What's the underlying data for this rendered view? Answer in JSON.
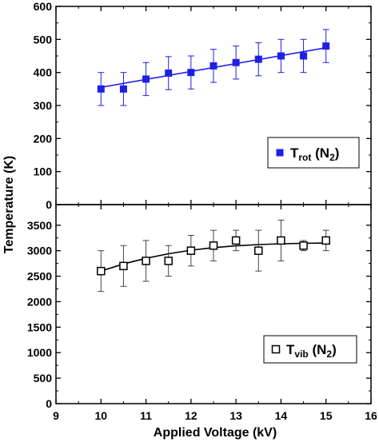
{
  "chart_data": {
    "type": "scatter",
    "xlabel": "Applied Voltage (kV)",
    "ylabel": "Temperature (K)",
    "xlim": [
      9,
      16
    ],
    "x_ticks": [
      "9",
      "10",
      "11",
      "12",
      "13",
      "14",
      "15",
      "16"
    ],
    "grid": false,
    "panels": [
      {
        "name": "top",
        "ylim": [
          0,
          600
        ],
        "y_ticks": [
          "0",
          "100",
          "200",
          "300",
          "400",
          "500",
          "600"
        ],
        "legend": {
          "placement": "center-right",
          "main": "T",
          "sub": "rot",
          "open": "(N",
          "subscript2": "2",
          "close": ")"
        },
        "series": [
          {
            "marker": "filled-square",
            "color": "#1f1fe6",
            "x": [
              10,
              10.5,
              11,
              11.5,
              12,
              12.5,
              13,
              13.5,
              14,
              14.5,
              15
            ],
            "y": [
              350,
              350,
              380,
              398,
              400,
              420,
              430,
              440,
              450,
              450,
              480
            ],
            "err": [
              50,
              50,
              50,
              50,
              50,
              50,
              50,
              50,
              50,
              50,
              50
            ],
            "fit": {
              "x": [
                10,
                15
              ],
              "y": [
                355,
                475
              ]
            }
          }
        ]
      },
      {
        "name": "bottom",
        "ylim": [
          0,
          3700
        ],
        "y_ticks": [
          "0",
          "500",
          "1000",
          "1500",
          "2000",
          "2500",
          "3000",
          "3500"
        ],
        "legend": {
          "placement": "lower-right",
          "main": "T",
          "sub": "vib",
          "open": "(N",
          "subscript2": "2",
          "close": ")"
        },
        "series": [
          {
            "marker": "open-square",
            "color": "#000000",
            "x": [
              10,
              10.5,
              11,
              11.5,
              12,
              12.5,
              13,
              13.5,
              14,
              14.5,
              15
            ],
            "y": [
              2600,
              2700,
              2800,
              2800,
              3000,
              3100,
              3200,
              3000,
              3200,
              3100,
              3200
            ],
            "err": [
              400,
              400,
              400,
              300,
              300,
              300,
              200,
              400,
              400,
              100,
              200
            ],
            "fit": {
              "x": [
                10,
                10.5,
                11,
                11.5,
                12,
                12.5,
                13,
                13.5,
                14,
                14.5,
                15
              ],
              "y": [
                2600,
                2740,
                2850,
                2940,
                3010,
                3060,
                3095,
                3120,
                3135,
                3145,
                3150
              ]
            }
          }
        ]
      }
    ]
  }
}
